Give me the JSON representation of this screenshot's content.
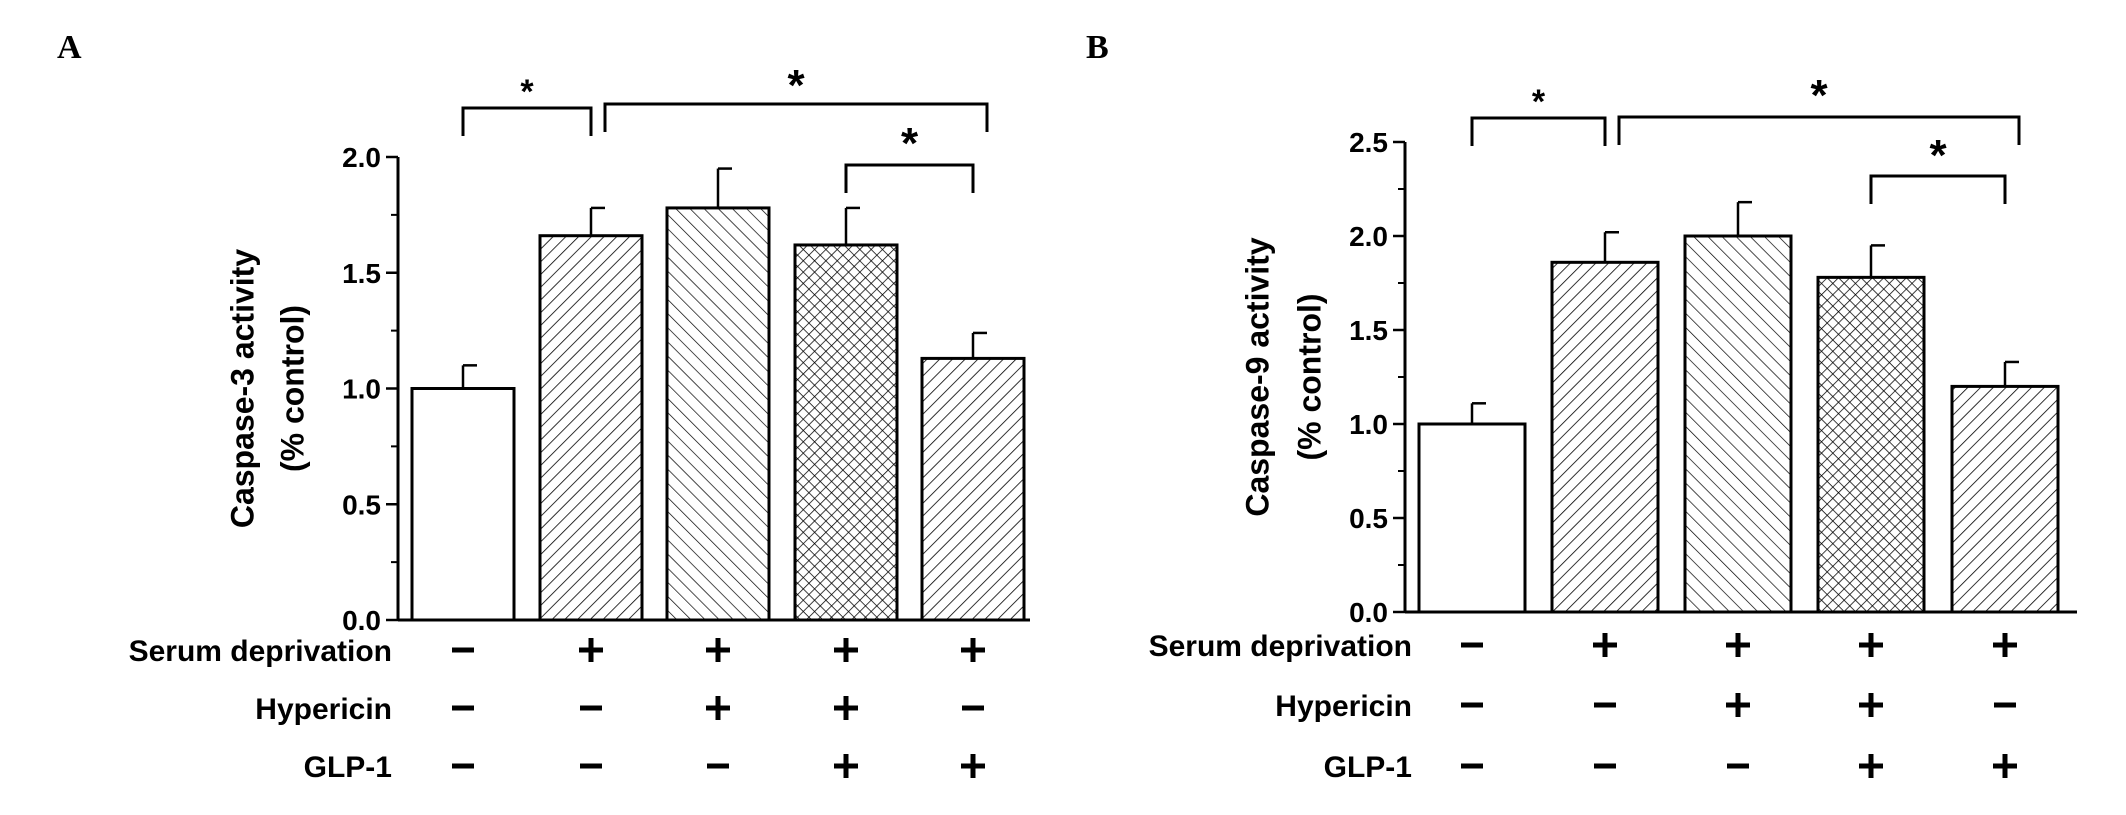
{
  "chart_data": [
    {
      "panel": "A",
      "type": "bar",
      "ylabel": "Caspase-3 activity",
      "ylabel_sub": "(% control)",
      "ylim": [
        0,
        2.0
      ],
      "yticks": [
        "0.0",
        "0.5",
        "1.0",
        "1.5",
        "2.0"
      ],
      "values": [
        1.0,
        1.66,
        1.78,
        1.62,
        1.13
      ],
      "errors": [
        0.1,
        0.12,
        0.17,
        0.16,
        0.11
      ],
      "patterns": [
        "none",
        "diag-fwd",
        "diag-back",
        "crosshatch",
        "diag-fwd"
      ],
      "conditions": [
        {
          "label": "Serum deprivation",
          "signs": [
            "-",
            "+",
            "+",
            "+",
            "+"
          ]
        },
        {
          "label": "Hypericin",
          "signs": [
            "-",
            "-",
            "+",
            "+",
            "-"
          ]
        },
        {
          "label": "GLP-1",
          "signs": [
            "-",
            "-",
            "-",
            "+",
            "+"
          ]
        }
      ],
      "significance": [
        {
          "from": 0,
          "to": 1,
          "mark": "*"
        },
        {
          "from": 1,
          "to": 4,
          "mark": "*"
        },
        {
          "from": 3,
          "to": 4,
          "mark": "*"
        }
      ]
    },
    {
      "panel": "B",
      "type": "bar",
      "ylabel": "Caspase-9 activity",
      "ylabel_sub": "(% control)",
      "ylim": [
        0,
        2.5
      ],
      "yticks": [
        "0.0",
        "0.5",
        "1.0",
        "1.5",
        "2.0",
        "2.5"
      ],
      "values": [
        1.0,
        1.86,
        2.0,
        1.78,
        1.2
      ],
      "errors": [
        0.11,
        0.16,
        0.18,
        0.17,
        0.13
      ],
      "patterns": [
        "none",
        "diag-fwd",
        "diag-back",
        "crosshatch",
        "diag-fwd"
      ],
      "conditions": [
        {
          "label": "Serum deprivation",
          "signs": [
            "-",
            "+",
            "+",
            "+",
            "+"
          ]
        },
        {
          "label": "Hypericin",
          "signs": [
            "-",
            "-",
            "+",
            "+",
            "-"
          ]
        },
        {
          "label": "GLP-1",
          "signs": [
            "-",
            "-",
            "-",
            "+",
            "+"
          ]
        }
      ],
      "significance": [
        {
          "from": 0,
          "to": 1,
          "mark": "*"
        },
        {
          "from": 1,
          "to": 4,
          "mark": "*"
        },
        {
          "from": 3,
          "to": 4,
          "mark": "*"
        }
      ]
    }
  ]
}
